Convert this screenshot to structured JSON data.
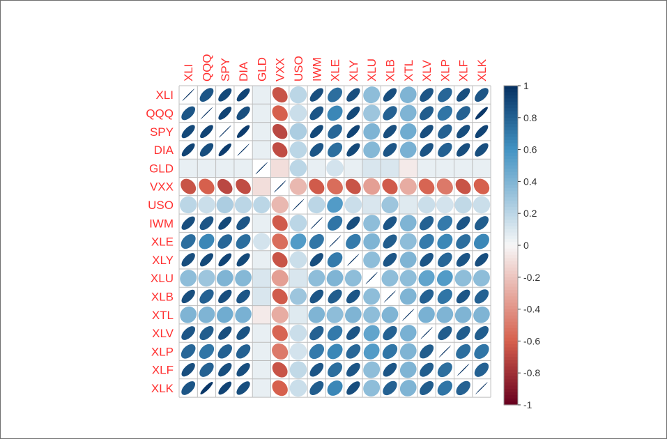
{
  "chart_data": {
    "type": "heatmap",
    "style": "ellipse correlation matrix",
    "title": "",
    "xlabel": "",
    "ylabel": "",
    "label_color": "#ff3030",
    "variables": [
      "XLI",
      "QQQ",
      "SPY",
      "DIA",
      "GLD",
      "VXX",
      "USO",
      "IWM",
      "XLE",
      "XLY",
      "XLU",
      "XLB",
      "XTL",
      "XLV",
      "XLP",
      "XLF",
      "XLK"
    ],
    "matrix": [
      [
        1.0,
        0.85,
        0.9,
        0.92,
        0.05,
        -0.65,
        0.2,
        0.88,
        0.75,
        0.88,
        0.35,
        0.88,
        0.4,
        0.85,
        0.78,
        0.88,
        0.85
      ],
      [
        0.85,
        1.0,
        0.92,
        0.88,
        0.05,
        -0.6,
        0.15,
        0.85,
        0.65,
        0.9,
        0.3,
        0.8,
        0.4,
        0.82,
        0.72,
        0.8,
        0.97
      ],
      [
        0.9,
        0.92,
        1.0,
        0.95,
        0.05,
        -0.7,
        0.25,
        0.9,
        0.78,
        0.92,
        0.4,
        0.88,
        0.45,
        0.88,
        0.8,
        0.88,
        0.92
      ],
      [
        0.92,
        0.88,
        0.95,
        1.0,
        0.05,
        -0.68,
        0.2,
        0.85,
        0.75,
        0.9,
        0.38,
        0.85,
        0.42,
        0.86,
        0.8,
        0.88,
        0.88
      ],
      [
        0.05,
        0.05,
        0.05,
        0.05,
        1.0,
        -0.1,
        0.2,
        0.05,
        0.12,
        0.05,
        0.1,
        0.1,
        -0.05,
        0.05,
        0.05,
        0.05,
        0.05
      ],
      [
        -0.65,
        -0.6,
        -0.7,
        -0.68,
        -0.1,
        1.0,
        -0.25,
        -0.62,
        -0.55,
        -0.65,
        -0.35,
        -0.62,
        -0.3,
        -0.58,
        -0.5,
        -0.65,
        -0.6
      ],
      [
        0.2,
        0.15,
        0.25,
        0.2,
        0.2,
        -0.25,
        1.0,
        0.2,
        0.55,
        0.15,
        0.1,
        0.3,
        0.08,
        0.15,
        0.12,
        0.18,
        0.15
      ],
      [
        0.88,
        0.85,
        0.9,
        0.85,
        0.05,
        -0.62,
        0.2,
        1.0,
        0.72,
        0.88,
        0.35,
        0.85,
        0.4,
        0.8,
        0.7,
        0.85,
        0.82
      ],
      [
        0.75,
        0.65,
        0.78,
        0.75,
        0.12,
        -0.55,
        0.55,
        0.72,
        1.0,
        0.7,
        0.4,
        0.82,
        0.35,
        0.7,
        0.65,
        0.75,
        0.65
      ],
      [
        0.88,
        0.9,
        0.92,
        0.9,
        0.05,
        -0.65,
        0.15,
        0.88,
        0.7,
        1.0,
        0.35,
        0.85,
        0.4,
        0.85,
        0.78,
        0.85,
        0.88
      ],
      [
        0.35,
        0.3,
        0.4,
        0.38,
        0.1,
        -0.35,
        0.1,
        0.35,
        0.4,
        0.35,
        1.0,
        0.35,
        0.35,
        0.5,
        0.55,
        0.35,
        0.35
      ],
      [
        0.88,
        0.8,
        0.88,
        0.85,
        0.1,
        -0.62,
        0.3,
        0.85,
        0.82,
        0.85,
        0.35,
        1.0,
        0.4,
        0.8,
        0.72,
        0.85,
        0.8
      ],
      [
        0.4,
        0.4,
        0.45,
        0.42,
        -0.05,
        -0.3,
        0.08,
        0.4,
        0.35,
        0.4,
        0.35,
        0.4,
        1.0,
        0.42,
        0.4,
        0.4,
        0.4
      ],
      [
        0.85,
        0.82,
        0.88,
        0.86,
        0.05,
        -0.58,
        0.15,
        0.8,
        0.7,
        0.85,
        0.5,
        0.8,
        0.42,
        1.0,
        0.82,
        0.82,
        0.82
      ],
      [
        0.78,
        0.72,
        0.8,
        0.8,
        0.05,
        -0.5,
        0.12,
        0.7,
        0.65,
        0.78,
        0.55,
        0.72,
        0.4,
        0.82,
        1.0,
        0.75,
        0.72
      ],
      [
        0.88,
        0.8,
        0.88,
        0.88,
        0.05,
        -0.65,
        0.18,
        0.85,
        0.75,
        0.85,
        0.35,
        0.85,
        0.4,
        0.82,
        0.75,
        1.0,
        0.8
      ],
      [
        0.85,
        0.97,
        0.92,
        0.88,
        0.05,
        -0.6,
        0.15,
        0.82,
        0.65,
        0.88,
        0.35,
        0.8,
        0.4,
        0.82,
        0.72,
        0.8,
        1.0
      ]
    ],
    "colorbar": {
      "range": [
        -1,
        1
      ],
      "ticks": [
        "1",
        "0.8",
        "0.6",
        "0.4",
        "0.2",
        "0",
        "-0.2",
        "-0.4",
        "-0.6",
        "-0.8",
        "-1"
      ],
      "colors": {
        "neg1": "#67001f",
        "neg06": "#d6604d",
        "zero": "#f7f7f7",
        "pos06": "#4393c3",
        "pos1": "#053061"
      }
    }
  }
}
